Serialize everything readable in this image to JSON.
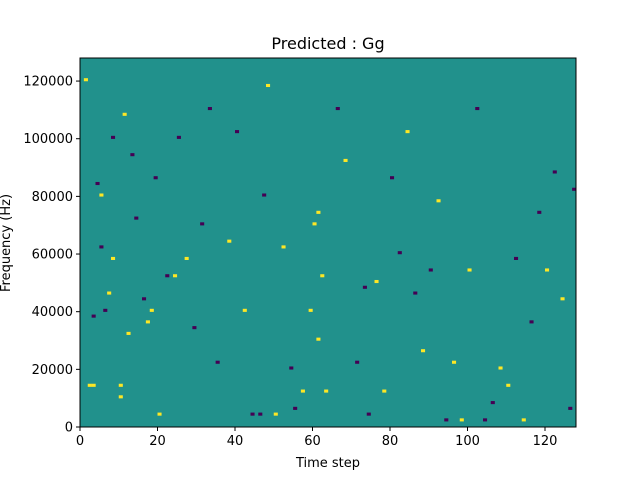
{
  "chart_data": {
    "type": "heatmap",
    "title": "Predicted : Gg",
    "xlabel": "Time step",
    "ylabel": "Frequency (Hz)",
    "xlim": [
      0,
      128
    ],
    "ylim": [
      0,
      128000
    ],
    "x_ticks": [
      0,
      20,
      40,
      60,
      80,
      100,
      120
    ],
    "y_ticks": [
      0,
      20000,
      40000,
      60000,
      80000,
      100000,
      120000
    ],
    "x_tick_labels": [
      "0",
      "20",
      "40",
      "60",
      "80",
      "100",
      "120"
    ],
    "y_tick_labels": [
      "0",
      "20000",
      "40000",
      "60000",
      "80000",
      "100000",
      "120000"
    ],
    "value_levels": [
      -1,
      0,
      1
    ],
    "colormap": {
      "-1": "#440154",
      "0": "#21918c",
      "1": "#fde725"
    },
    "rows": 128,
    "cols": 128,
    "cells": [
      {
        "x": 1,
        "y": 120000,
        "v": 1
      },
      {
        "x": 2,
        "y": 14000,
        "v": 1
      },
      {
        "x": 3,
        "y": 38000,
        "v": -1
      },
      {
        "x": 3,
        "y": 14000,
        "v": 1
      },
      {
        "x": 4,
        "y": 84000,
        "v": -1
      },
      {
        "x": 5,
        "y": 62000,
        "v": -1
      },
      {
        "x": 5,
        "y": 80000,
        "v": 1
      },
      {
        "x": 6,
        "y": 40000,
        "v": -1
      },
      {
        "x": 7,
        "y": 46000,
        "v": 1
      },
      {
        "x": 8,
        "y": 58000,
        "v": 1
      },
      {
        "x": 8,
        "y": 100000,
        "v": -1
      },
      {
        "x": 10,
        "y": 14000,
        "v": 1
      },
      {
        "x": 10,
        "y": 10000,
        "v": 1
      },
      {
        "x": 11,
        "y": 108000,
        "v": 1
      },
      {
        "x": 12,
        "y": 32000,
        "v": 1
      },
      {
        "x": 13,
        "y": 94000,
        "v": -1
      },
      {
        "x": 14,
        "y": 72000,
        "v": -1
      },
      {
        "x": 16,
        "y": 44000,
        "v": -1
      },
      {
        "x": 17,
        "y": 36000,
        "v": 1
      },
      {
        "x": 18,
        "y": 40000,
        "v": 1
      },
      {
        "x": 19,
        "y": 86000,
        "v": -1
      },
      {
        "x": 20,
        "y": 4000,
        "v": 1
      },
      {
        "x": 22,
        "y": 52000,
        "v": -1
      },
      {
        "x": 24,
        "y": 52000,
        "v": 1
      },
      {
        "x": 25,
        "y": 100000,
        "v": -1
      },
      {
        "x": 27,
        "y": 58000,
        "v": 1
      },
      {
        "x": 29,
        "y": 34000,
        "v": -1
      },
      {
        "x": 31,
        "y": 70000,
        "v": -1
      },
      {
        "x": 33,
        "y": 110000,
        "v": -1
      },
      {
        "x": 35,
        "y": 22000,
        "v": -1
      },
      {
        "x": 38,
        "y": 64000,
        "v": 1
      },
      {
        "x": 40,
        "y": 102000,
        "v": -1
      },
      {
        "x": 42,
        "y": 40000,
        "v": 1
      },
      {
        "x": 44,
        "y": 4000,
        "v": -1
      },
      {
        "x": 46,
        "y": 4000,
        "v": -1
      },
      {
        "x": 47,
        "y": 80000,
        "v": -1
      },
      {
        "x": 48,
        "y": 118000,
        "v": 1
      },
      {
        "x": 50,
        "y": 4000,
        "v": 1
      },
      {
        "x": 52,
        "y": 62000,
        "v": 1
      },
      {
        "x": 54,
        "y": 20000,
        "v": -1
      },
      {
        "x": 55,
        "y": 6000,
        "v": -1
      },
      {
        "x": 57,
        "y": 12000,
        "v": 1
      },
      {
        "x": 59,
        "y": 40000,
        "v": 1
      },
      {
        "x": 60,
        "y": 70000,
        "v": 1
      },
      {
        "x": 61,
        "y": 74000,
        "v": 1
      },
      {
        "x": 61,
        "y": 30000,
        "v": 1
      },
      {
        "x": 62,
        "y": 52000,
        "v": 1
      },
      {
        "x": 63,
        "y": 12000,
        "v": 1
      },
      {
        "x": 66,
        "y": 110000,
        "v": -1
      },
      {
        "x": 68,
        "y": 92000,
        "v": 1
      },
      {
        "x": 71,
        "y": 22000,
        "v": -1
      },
      {
        "x": 73,
        "y": 48000,
        "v": -1
      },
      {
        "x": 74,
        "y": 4000,
        "v": -1
      },
      {
        "x": 76,
        "y": 50000,
        "v": 1
      },
      {
        "x": 78,
        "y": 12000,
        "v": 1
      },
      {
        "x": 80,
        "y": 86000,
        "v": -1
      },
      {
        "x": 82,
        "y": 60000,
        "v": -1
      },
      {
        "x": 84,
        "y": 102000,
        "v": 1
      },
      {
        "x": 86,
        "y": 46000,
        "v": -1
      },
      {
        "x": 88,
        "y": 26000,
        "v": 1
      },
      {
        "x": 90,
        "y": 54000,
        "v": -1
      },
      {
        "x": 92,
        "y": 78000,
        "v": 1
      },
      {
        "x": 94,
        "y": 2000,
        "v": -1
      },
      {
        "x": 96,
        "y": 22000,
        "v": 1
      },
      {
        "x": 98,
        "y": 2000,
        "v": 1
      },
      {
        "x": 100,
        "y": 54000,
        "v": 1
      },
      {
        "x": 102,
        "y": 110000,
        "v": -1
      },
      {
        "x": 104,
        "y": 2000,
        "v": -1
      },
      {
        "x": 106,
        "y": 8000,
        "v": -1
      },
      {
        "x": 108,
        "y": 20000,
        "v": 1
      },
      {
        "x": 110,
        "y": 14000,
        "v": 1
      },
      {
        "x": 112,
        "y": 58000,
        "v": -1
      },
      {
        "x": 114,
        "y": 2000,
        "v": 1
      },
      {
        "x": 116,
        "y": 36000,
        "v": -1
      },
      {
        "x": 118,
        "y": 74000,
        "v": -1
      },
      {
        "x": 120,
        "y": 54000,
        "v": 1
      },
      {
        "x": 122,
        "y": 88000,
        "v": -1
      },
      {
        "x": 124,
        "y": 44000,
        "v": 1
      },
      {
        "x": 126,
        "y": 6000,
        "v": -1
      },
      {
        "x": 127,
        "y": 82000,
        "v": -1
      }
    ]
  }
}
